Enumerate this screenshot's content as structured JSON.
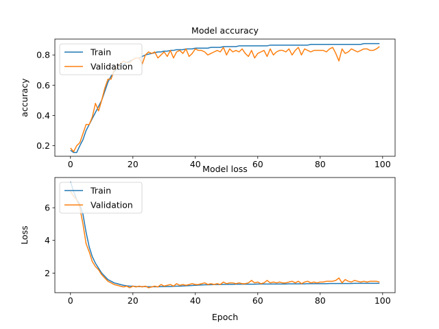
{
  "chart_data": [
    {
      "type": "line",
      "title": "Model accuracy",
      "xlabel": "",
      "ylabel": "accuracy",
      "xlim": [
        -5,
        104
      ],
      "ylim": [
        0.13,
        0.905
      ],
      "xticks": [
        0,
        20,
        40,
        60,
        80,
        100
      ],
      "yticks": [
        0.2,
        0.4,
        0.6,
        0.8
      ],
      "ytick_labels": [
        "0.2",
        "0.4",
        "0.6",
        "0.8"
      ],
      "grid": false,
      "legend": "top-left",
      "series": [
        {
          "name": "Train",
          "color": "#1f77b4",
          "values": [
            0.17,
            0.155,
            0.155,
            0.2,
            0.24,
            0.3,
            0.34,
            0.38,
            0.42,
            0.46,
            0.5,
            0.56,
            0.62,
            0.66,
            0.69,
            0.71,
            0.73,
            0.74,
            0.75,
            0.76,
            0.77,
            0.78,
            0.78,
            0.79,
            0.8,
            0.805,
            0.81,
            0.815,
            0.82,
            0.82,
            0.825,
            0.825,
            0.83,
            0.83,
            0.835,
            0.835,
            0.835,
            0.84,
            0.84,
            0.84,
            0.845,
            0.845,
            0.845,
            0.845,
            0.845,
            0.85,
            0.85,
            0.85,
            0.85,
            0.855,
            0.855,
            0.855,
            0.855,
            0.855,
            0.86,
            0.86,
            0.86,
            0.86,
            0.86,
            0.86,
            0.86,
            0.86,
            0.86,
            0.86,
            0.865,
            0.865,
            0.865,
            0.865,
            0.865,
            0.865,
            0.865,
            0.865,
            0.865,
            0.865,
            0.865,
            0.865,
            0.865,
            0.87,
            0.87,
            0.87,
            0.87,
            0.87,
            0.87,
            0.87,
            0.87,
            0.87,
            0.87,
            0.87,
            0.87,
            0.87,
            0.87,
            0.87,
            0.87,
            0.87,
            0.875,
            0.875,
            0.875,
            0.875,
            0.875,
            0.875
          ]
        },
        {
          "name": "Validation",
          "color": "#ff7f0e",
          "values": [
            0.185,
            0.16,
            0.2,
            0.22,
            0.28,
            0.34,
            0.34,
            0.39,
            0.48,
            0.43,
            0.5,
            0.58,
            0.64,
            0.64,
            0.7,
            0.72,
            0.74,
            0.76,
            0.75,
            0.75,
            0.77,
            0.78,
            0.78,
            0.74,
            0.8,
            0.82,
            0.81,
            0.82,
            0.78,
            0.8,
            0.82,
            0.79,
            0.83,
            0.78,
            0.82,
            0.83,
            0.81,
            0.84,
            0.79,
            0.81,
            0.84,
            0.83,
            0.83,
            0.82,
            0.8,
            0.81,
            0.82,
            0.83,
            0.82,
            0.85,
            0.8,
            0.84,
            0.82,
            0.83,
            0.82,
            0.84,
            0.81,
            0.79,
            0.83,
            0.78,
            0.81,
            0.82,
            0.83,
            0.79,
            0.84,
            0.8,
            0.82,
            0.83,
            0.83,
            0.82,
            0.84,
            0.8,
            0.83,
            0.85,
            0.8,
            0.84,
            0.83,
            0.82,
            0.83,
            0.83,
            0.83,
            0.83,
            0.82,
            0.84,
            0.85,
            0.81,
            0.76,
            0.84,
            0.81,
            0.82,
            0.84,
            0.83,
            0.82,
            0.83,
            0.84,
            0.84,
            0.83,
            0.83,
            0.84,
            0.855
          ]
        }
      ]
    },
    {
      "type": "line",
      "title": "Model loss",
      "xlabel": "Epoch",
      "ylabel": "Loss",
      "xlim": [
        -5,
        104
      ],
      "ylim": [
        0.8,
        7.85
      ],
      "xticks": [
        0,
        20,
        40,
        60,
        80,
        100
      ],
      "yticks": [
        2,
        4,
        6
      ],
      "ytick_labels": [
        "2",
        "4",
        "6"
      ],
      "grid": false,
      "legend": "top-left",
      "series": [
        {
          "name": "Train",
          "color": "#1f77b4",
          "values": [
            7.6,
            7.0,
            6.5,
            6.2,
            5.6,
            4.5,
            3.6,
            3.0,
            2.6,
            2.3,
            2.0,
            1.8,
            1.6,
            1.5,
            1.4,
            1.35,
            1.3,
            1.25,
            1.22,
            1.2,
            1.2,
            1.18,
            1.17,
            1.17,
            1.17,
            1.16,
            1.16,
            1.16,
            1.16,
            1.17,
            1.17,
            1.18,
            1.18,
            1.19,
            1.2,
            1.2,
            1.21,
            1.22,
            1.23,
            1.24,
            1.25,
            1.26,
            1.27,
            1.28,
            1.28,
            1.29,
            1.3,
            1.3,
            1.3,
            1.31,
            1.31,
            1.31,
            1.31,
            1.32,
            1.32,
            1.32,
            1.32,
            1.32,
            1.32,
            1.32,
            1.33,
            1.33,
            1.33,
            1.33,
            1.33,
            1.33,
            1.33,
            1.33,
            1.33,
            1.33,
            1.34,
            1.34,
            1.34,
            1.34,
            1.34,
            1.34,
            1.35,
            1.35,
            1.35,
            1.35,
            1.35,
            1.35,
            1.35,
            1.36,
            1.36,
            1.36,
            1.36,
            1.36,
            1.36,
            1.36,
            1.36,
            1.37,
            1.37,
            1.37,
            1.37,
            1.37,
            1.37,
            1.37,
            1.37,
            1.37
          ]
        },
        {
          "name": "Validation",
          "color": "#ff7f0e",
          "values": [
            7.0,
            6.7,
            6.5,
            6.0,
            5.0,
            3.8,
            3.3,
            2.7,
            2.4,
            2.2,
            1.9,
            1.7,
            1.5,
            1.4,
            1.3,
            1.25,
            1.2,
            1.15,
            1.2,
            1.1,
            1.2,
            1.15,
            1.2,
            1.15,
            1.2,
            1.1,
            1.15,
            1.2,
            1.15,
            1.3,
            1.2,
            1.25,
            1.3,
            1.2,
            1.35,
            1.25,
            1.3,
            1.25,
            1.3,
            1.35,
            1.3,
            1.3,
            1.35,
            1.4,
            1.3,
            1.35,
            1.3,
            1.35,
            1.3,
            1.45,
            1.35,
            1.4,
            1.4,
            1.35,
            1.4,
            1.35,
            1.35,
            1.4,
            1.55,
            1.4,
            1.45,
            1.35,
            1.4,
            1.55,
            1.4,
            1.45,
            1.4,
            1.45,
            1.4,
            1.4,
            1.45,
            1.5,
            1.4,
            1.5,
            1.35,
            1.45,
            1.5,
            1.4,
            1.45,
            1.4,
            1.45,
            1.45,
            1.5,
            1.5,
            1.5,
            1.55,
            1.7,
            1.4,
            1.6,
            1.5,
            1.45,
            1.55,
            1.5,
            1.45,
            1.5,
            1.45,
            1.5,
            1.5,
            1.5,
            1.45
          ]
        }
      ]
    }
  ]
}
